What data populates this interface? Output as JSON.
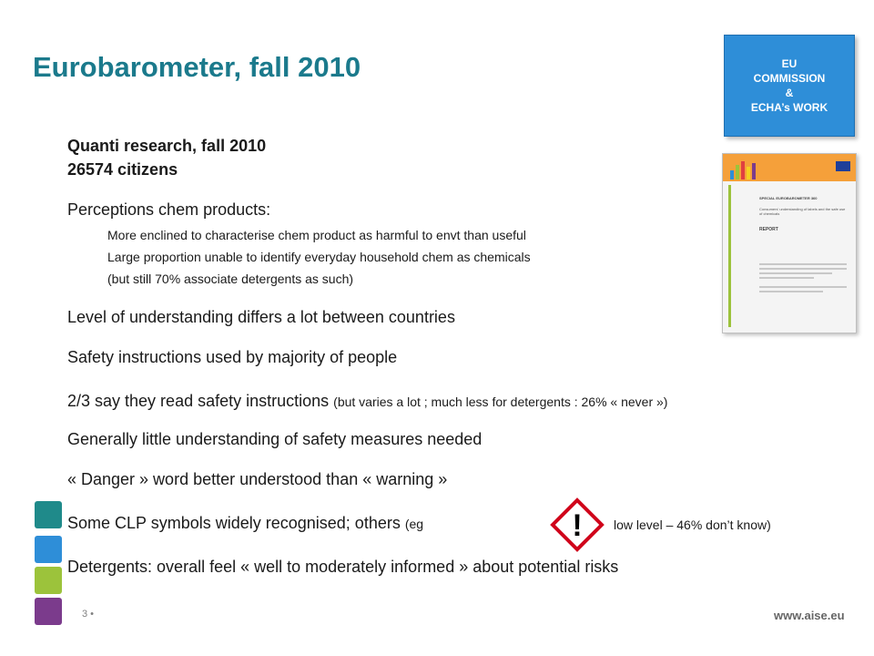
{
  "title": "Eurobarometer, fall 2010",
  "tag": {
    "line1": "EU",
    "line2": "COMMISSION",
    "line3": "&",
    "line4": "ECHA’s WORK"
  },
  "report_image": {
    "heading": "SPECIAL EUROBAROMETER 360",
    "title": "Consumers' understanding of labels and the safe use of chemicals",
    "label": "REPORT"
  },
  "lines": {
    "l1": "Quanti research, fall 2010",
    "l2": "26574 citizens",
    "l3": "Perceptions chem products:",
    "s1": "More enclined to characterise chem product as harmful to envt than useful",
    "s2": "Large proportion unable to identify everyday household chem as chemicals",
    "s3": "(but still 70% associate detergents as such)",
    "l4": "Level of understanding differs a lot between countries",
    "l5": "Safety instructions used by majority of people",
    "l6a": "2/3 say they read safety instructions ",
    "l6b": "(but varies a lot ; much less for detergents : 26% « never »)",
    "l7": "Generally little understanding of safety measures needed",
    "l8": "« Danger » word better understood than « warning »",
    "l9a": "Some CLP symbols widely recognised; others ",
    "l9b": "(eg",
    "l9c": "low level – 46% don’t know)",
    "l10": "Detergents: overall feel « well to moderately informed »  about potential risks"
  },
  "hazard_symbol": "!",
  "bars": [
    "#1f8a8a",
    "#2e8ed8",
    "#9cc33b",
    "#7b3b8c"
  ],
  "footer": {
    "page": "3",
    "url": "www.aise.eu"
  }
}
